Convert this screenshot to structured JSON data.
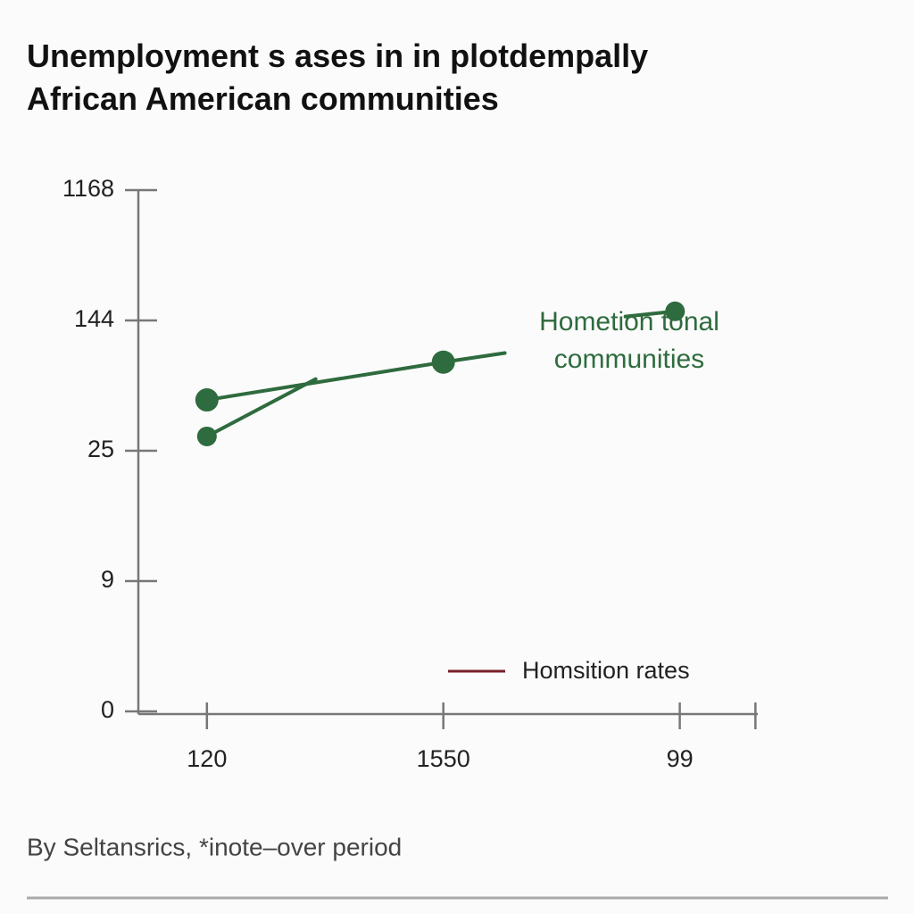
{
  "chart_data": {
    "type": "line",
    "title": [
      "Unemployment s ases in in plotdempally",
      "African American communities"
    ],
    "footnote": "By Seltansrics, *inote–over period",
    "xlim": [
      -0.29,
      2.33
    ],
    "xticks": [
      {
        "value": 0,
        "label": "120"
      },
      {
        "value": 1,
        "label": "1550"
      },
      {
        "value": 2,
        "label": "99"
      },
      {
        "value": 2.32,
        "label": null
      }
    ],
    "ylim": [
      0,
      4
    ],
    "yticks": [
      {
        "value": 0,
        "label": "0"
      },
      {
        "value": 1,
        "label": "9"
      },
      {
        "value": 2,
        "label": "25"
      },
      {
        "value": 3,
        "label": "144"
      },
      {
        "value": 4,
        "label": "1168"
      }
    ],
    "series": [
      {
        "name": "Hometion tonal communities",
        "color": "#2e6b3e",
        "x": [
          0,
          1,
          1.26
        ],
        "values": [
          2.39,
          2.68,
          2.75
        ],
        "markers": [
          true,
          true,
          false
        ]
      },
      {
        "color": "#2e6b3e",
        "x": [
          0,
          0.46,
          null,
          1.77,
          1.98
        ],
        "values": [
          2.11,
          2.55,
          null,
          3.03,
          3.07
        ],
        "markers": [
          true,
          false,
          false,
          false,
          true
        ]
      },
      {
        "name": "Homsition rates",
        "color": "#7a1f2b",
        "x": [],
        "values": [],
        "markers": []
      }
    ]
  }
}
